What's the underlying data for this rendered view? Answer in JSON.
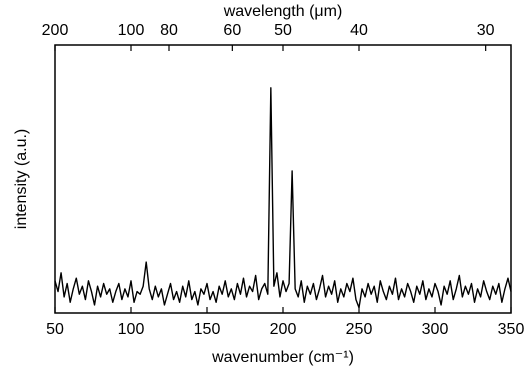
{
  "chart_data": {
    "type": "line",
    "xlabel": "wavenumber (cm⁻¹)",
    "ylabel": "intensity (a.u.)",
    "x2label": "wavelength (μm)",
    "xlim": [
      50,
      350
    ],
    "xticks": [
      50,
      100,
      150,
      200,
      250,
      300,
      350
    ],
    "x2ticks": [
      200,
      100,
      80,
      60,
      50,
      40,
      30
    ],
    "ylim": [
      0,
      1
    ],
    "color": "#000000",
    "x": [
      50,
      52,
      54,
      56,
      58,
      60,
      62,
      64,
      66,
      68,
      70,
      72,
      74,
      76,
      78,
      80,
      82,
      84,
      86,
      88,
      90,
      92,
      94,
      96,
      98,
      100,
      102,
      104,
      106,
      108,
      110,
      112,
      114,
      116,
      118,
      120,
      122,
      124,
      126,
      128,
      130,
      132,
      134,
      136,
      138,
      140,
      142,
      144,
      146,
      148,
      150,
      152,
      154,
      156,
      158,
      160,
      162,
      164,
      166,
      168,
      170,
      172,
      174,
      176,
      178,
      180,
      182,
      184,
      186,
      188,
      190,
      192,
      194,
      196,
      198,
      200,
      202,
      204,
      206,
      208,
      210,
      212,
      214,
      216,
      218,
      220,
      222,
      224,
      226,
      228,
      230,
      232,
      234,
      236,
      238,
      240,
      242,
      244,
      246,
      248,
      250,
      252,
      254,
      256,
      258,
      260,
      262,
      264,
      266,
      268,
      270,
      272,
      274,
      276,
      278,
      280,
      282,
      284,
      286,
      288,
      290,
      292,
      294,
      296,
      298,
      300,
      302,
      304,
      306,
      308,
      310,
      312,
      314,
      316,
      318,
      320,
      322,
      324,
      326,
      328,
      330,
      332,
      334,
      336,
      338,
      340,
      342,
      344,
      346,
      348,
      350
    ],
    "values": [
      0.12,
      0.08,
      0.15,
      0.06,
      0.11,
      0.04,
      0.09,
      0.13,
      0.07,
      0.1,
      0.05,
      0.12,
      0.08,
      0.03,
      0.1,
      0.06,
      0.11,
      0.07,
      0.09,
      0.04,
      0.08,
      0.11,
      0.05,
      0.09,
      0.06,
      0.12,
      0.04,
      0.08,
      0.07,
      0.1,
      0.19,
      0.09,
      0.05,
      0.1,
      0.06,
      0.09,
      0.03,
      0.07,
      0.11,
      0.05,
      0.08,
      0.04,
      0.1,
      0.06,
      0.12,
      0.05,
      0.08,
      0.03,
      0.09,
      0.07,
      0.11,
      0.05,
      0.08,
      0.04,
      0.1,
      0.07,
      0.12,
      0.06,
      0.09,
      0.05,
      0.11,
      0.07,
      0.13,
      0.06,
      0.1,
      0.08,
      0.14,
      0.05,
      0.09,
      0.11,
      0.07,
      0.84,
      0.1,
      0.15,
      0.06,
      0.12,
      0.08,
      0.11,
      0.53,
      0.09,
      0.06,
      0.12,
      0.04,
      0.1,
      0.07,
      0.11,
      0.05,
      0.09,
      0.14,
      0.06,
      0.1,
      0.07,
      0.12,
      0.04,
      0.09,
      0.06,
      0.11,
      0.08,
      0.13,
      0.05,
      0.02,
      0.09,
      0.06,
      0.11,
      0.07,
      0.1,
      0.04,
      0.12,
      0.08,
      0.05,
      0.1,
      0.07,
      0.13,
      0.05,
      0.09,
      0.06,
      0.11,
      0.08,
      0.04,
      0.1,
      0.07,
      0.12,
      0.05,
      0.09,
      0.06,
      0.11,
      0.08,
      0.03,
      0.1,
      0.07,
      0.12,
      0.05,
      0.09,
      0.14,
      0.06,
      0.1,
      0.07,
      0.11,
      0.04,
      0.09,
      0.06,
      0.12,
      0.08,
      0.05,
      0.1,
      0.07,
      0.11,
      0.04,
      0.09,
      0.13,
      0.08
    ]
  }
}
